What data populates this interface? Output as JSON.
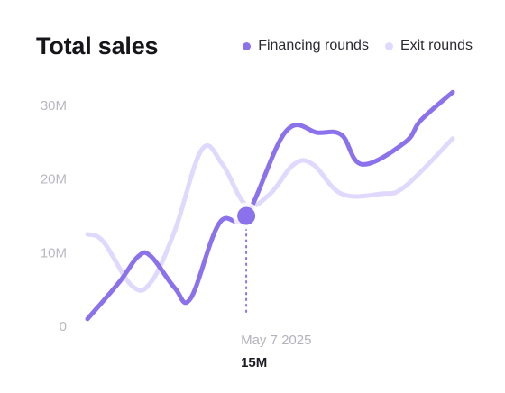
{
  "chart_data": {
    "type": "line",
    "title": "Total sales",
    "xlabel": "",
    "ylabel": "",
    "ylim": [
      0,
      30
    ],
    "yticks": [
      {
        "value": 0,
        "label": "0"
      },
      {
        "value": 10,
        "label": "10M"
      },
      {
        "value": 20,
        "label": "20M"
      },
      {
        "value": 30,
        "label": "30M"
      }
    ],
    "grid": false,
    "legend_position": "top-right",
    "series": [
      {
        "name": "Financing rounds",
        "color": "#8b72ec",
        "x": [
          0,
          0.2,
          0.32,
          0.4,
          0.55,
          0.65,
          0.83,
          1,
          1.25,
          1.45,
          1.6,
          1.73,
          2,
          2.1,
          2.3
        ],
        "values": [
          1,
          6,
          9.5,
          9.5,
          5.2,
          3.8,
          14,
          15,
          26.5,
          26.3,
          26,
          22,
          25,
          28,
          31.8
        ]
      },
      {
        "name": "Exit rounds",
        "color": "#e0d9fd",
        "x": [
          0,
          0.1,
          0.28,
          0.4,
          0.55,
          0.72,
          0.85,
          1,
          1.15,
          1.3,
          1.42,
          1.6,
          1.85,
          2.0,
          2.3
        ],
        "values": [
          12.5,
          11.5,
          5.5,
          6,
          13,
          24,
          22,
          16.5,
          18,
          22,
          22,
          18,
          18,
          19,
          25.5
        ]
      }
    ],
    "highlight": {
      "date": "May 7 2025",
      "value_label": "15M",
      "x": 1.0,
      "value": 15
    }
  },
  "colors": {
    "primary": "#8b72ec",
    "secondary": "#e0d9fd",
    "tick_text": "#b8b8c0",
    "title_text": "#15151a"
  }
}
